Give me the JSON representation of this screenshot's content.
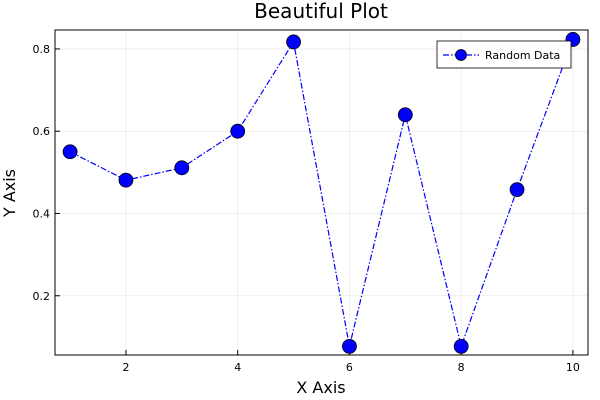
{
  "chart_data": {
    "type": "line",
    "title": "Beautiful Plot",
    "xlabel": "X Axis",
    "ylabel": "Y Axis",
    "xlim": [
      0.73,
      10.27
    ],
    "ylim": [
      0.056,
      0.846
    ],
    "xticks": [
      2,
      4,
      6,
      8,
      10
    ],
    "yticks": [
      0.2,
      0.4,
      0.6,
      0.8
    ],
    "xtick_labels": [
      "2",
      "4",
      "6",
      "8",
      "10"
    ],
    "ytick_labels": [
      "0.2",
      "0.4",
      "0.6",
      "0.8"
    ],
    "grid": true,
    "legend_position": "top-right",
    "series": [
      {
        "name": "Random Data",
        "color": "#0000ff",
        "line_style": "dash-dot",
        "marker": "circle",
        "x": [
          1,
          2,
          3,
          4,
          5,
          6,
          7,
          8,
          9,
          10
        ],
        "values": [
          0.55,
          0.481,
          0.511,
          0.6,
          0.817,
          0.077,
          0.64,
          0.077,
          0.458,
          0.823
        ]
      }
    ]
  }
}
